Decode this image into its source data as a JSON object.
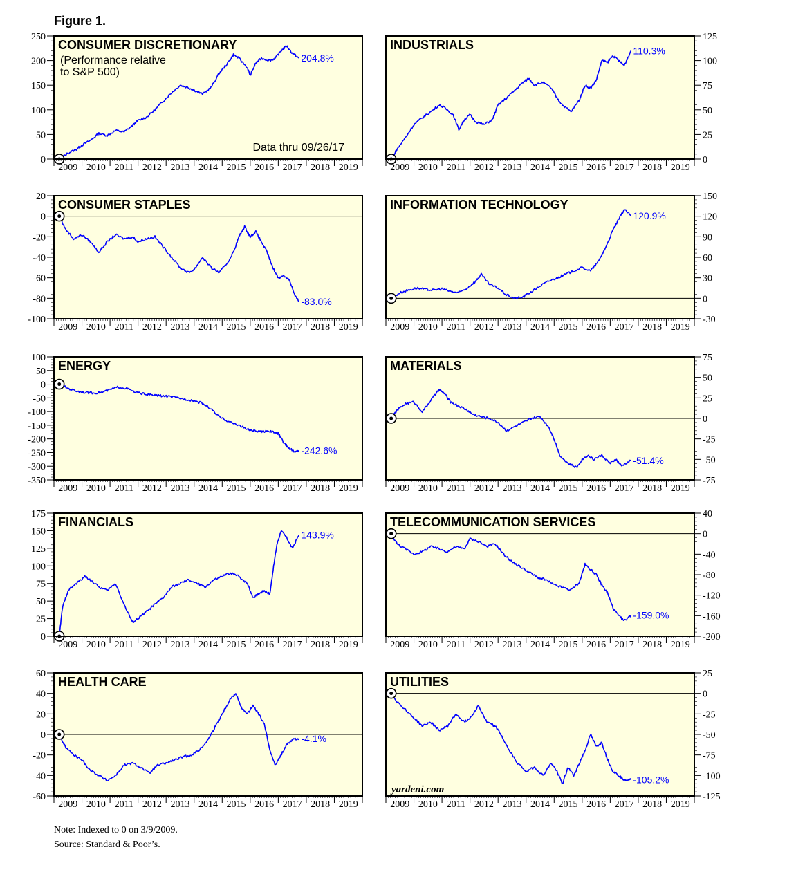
{
  "figure_title": "Figure 1.",
  "notes": {
    "line1": "Note: Indexed to 0 on 3/9/2009.",
    "line2": "Source: Standard & Poor’s."
  },
  "colors": {
    "panel_bg": "#FFFFE0",
    "series": "#0000FF",
    "end_label": "#0000FF"
  },
  "chart_data": [
    {
      "type": "line",
      "title": "CONSUMER DISCRETIONARY",
      "subtitle": [
        "(Performance relative",
        "to S&P 500)"
      ],
      "note": "Data thru 09/26/17",
      "x_ticks": [
        "2009",
        "2010",
        "2011",
        "2012",
        "2013",
        "2014",
        "2015",
        "2016",
        "2017",
        "2018",
        "2019"
      ],
      "ylim": [
        0,
        250
      ],
      "y_ticks": [
        "0",
        "50",
        "100",
        "150",
        "200",
        "250"
      ],
      "y_axis": "left",
      "baseline": 0,
      "end_label": "204.8%",
      "x": [
        2009.19,
        2009.5,
        2009.8,
        2010.0,
        2010.3,
        2010.6,
        2010.9,
        2011.2,
        2011.5,
        2011.8,
        2012.0,
        2012.3,
        2012.6,
        2012.9,
        2013.2,
        2013.5,
        2013.8,
        2014.0,
        2014.3,
        2014.6,
        2014.9,
        2015.2,
        2015.4,
        2015.6,
        2015.9,
        2016.0,
        2016.2,
        2016.4,
        2016.7,
        2016.9,
        2017.1,
        2017.3,
        2017.5,
        2017.74
      ],
      "y": [
        0,
        12,
        20,
        28,
        38,
        52,
        48,
        58,
        55,
        68,
        78,
        85,
        100,
        118,
        135,
        150,
        145,
        140,
        132,
        145,
        175,
        195,
        212,
        205,
        185,
        170,
        195,
        205,
        200,
        205,
        220,
        230,
        215,
        205
      ]
    },
    {
      "type": "line",
      "title": "INDUSTRIALS",
      "x_ticks": [
        "2009",
        "2010",
        "2011",
        "2012",
        "2013",
        "2014",
        "2015",
        "2016",
        "2017",
        "2018",
        "2019"
      ],
      "ylim": [
        0,
        125
      ],
      "y_ticks": [
        "0",
        "25",
        "50",
        "75",
        "100",
        "125"
      ],
      "y_axis": "right",
      "baseline": 0,
      "end_label": "110.3%",
      "x": [
        2009.19,
        2009.4,
        2009.7,
        2010.0,
        2010.3,
        2010.6,
        2010.9,
        2011.1,
        2011.4,
        2011.6,
        2011.8,
        2012.0,
        2012.2,
        2012.5,
        2012.8,
        2013.0,
        2013.3,
        2013.6,
        2013.9,
        2014.1,
        2014.3,
        2014.6,
        2014.9,
        2015.1,
        2015.3,
        2015.6,
        2015.9,
        2016.1,
        2016.3,
        2016.5,
        2016.7,
        2016.9,
        2017.1,
        2017.3,
        2017.5,
        2017.74
      ],
      "y": [
        0,
        10,
        22,
        35,
        42,
        48,
        55,
        52,
        45,
        30,
        40,
        45,
        38,
        35,
        40,
        55,
        62,
        70,
        78,
        82,
        75,
        78,
        72,
        62,
        55,
        48,
        60,
        75,
        72,
        80,
        100,
        98,
        105,
        100,
        95,
        110
      ]
    },
    {
      "type": "line",
      "title": "CONSUMER STAPLES",
      "x_ticks": [
        "2009",
        "2010",
        "2011",
        "2012",
        "2013",
        "2014",
        "2015",
        "2016",
        "2017",
        "2018",
        "2019"
      ],
      "ylim": [
        -100,
        20
      ],
      "y_ticks": [
        "-100",
        "-80",
        "-60",
        "-40",
        "-20",
        "0",
        "20"
      ],
      "y_axis": "left",
      "baseline": 0,
      "end_label": "-83.0%",
      "x": [
        2009.19,
        2009.4,
        2009.7,
        2010.0,
        2010.3,
        2010.6,
        2010.9,
        2011.2,
        2011.5,
        2011.8,
        2012.0,
        2012.3,
        2012.6,
        2012.9,
        2013.2,
        2013.5,
        2013.8,
        2014.0,
        2014.3,
        2014.6,
        2014.9,
        2015.2,
        2015.4,
        2015.6,
        2015.8,
        2016.0,
        2016.2,
        2016.4,
        2016.6,
        2016.8,
        2017.0,
        2017.2,
        2017.4,
        2017.6,
        2017.74
      ],
      "y": [
        0,
        -12,
        -22,
        -18,
        -25,
        -35,
        -25,
        -18,
        -22,
        -20,
        -25,
        -22,
        -20,
        -30,
        -40,
        -50,
        -55,
        -52,
        -40,
        -50,
        -55,
        -45,
        -35,
        -20,
        -10,
        -20,
        -15,
        -25,
        -35,
        -50,
        -60,
        -58,
        -62,
        -78,
        -83
      ]
    },
    {
      "type": "line",
      "title": "INFORMATION TECHNOLOGY",
      "x_ticks": [
        "2009",
        "2010",
        "2011",
        "2012",
        "2013",
        "2014",
        "2015",
        "2016",
        "2017",
        "2018",
        "2019"
      ],
      "ylim": [
        -30,
        150
      ],
      "y_ticks": [
        "-30",
        "0",
        "30",
        "60",
        "90",
        "120",
        "150"
      ],
      "y_axis": "right",
      "baseline": 0,
      "end_label": "120.9%",
      "x": [
        2009.19,
        2009.5,
        2009.8,
        2010.1,
        2010.4,
        2010.7,
        2011.0,
        2011.3,
        2011.6,
        2011.9,
        2012.2,
        2012.4,
        2012.7,
        2013.0,
        2013.3,
        2013.6,
        2013.9,
        2014.2,
        2014.5,
        2014.8,
        2015.1,
        2015.4,
        2015.7,
        2016.0,
        2016.3,
        2016.6,
        2016.9,
        2017.1,
        2017.3,
        2017.5,
        2017.74
      ],
      "y": [
        0,
        8,
        12,
        15,
        13,
        12,
        14,
        10,
        8,
        15,
        25,
        35,
        20,
        15,
        5,
        0,
        2,
        10,
        18,
        25,
        30,
        35,
        40,
        45,
        40,
        55,
        80,
        100,
        115,
        130,
        120.9
      ]
    },
    {
      "type": "line",
      "title": "ENERGY",
      "x_ticks": [
        "2009",
        "2010",
        "2011",
        "2012",
        "2013",
        "2014",
        "2015",
        "2016",
        "2017",
        "2018",
        "2019"
      ],
      "ylim": [
        -350,
        100
      ],
      "y_ticks": [
        "-350",
        "-300",
        "-250",
        "-200",
        "-150",
        "-100",
        "-50",
        "0",
        "50",
        "100"
      ],
      "y_axis": "left",
      "baseline": 0,
      "end_label": "-242.6%",
      "x": [
        2009.19,
        2009.5,
        2009.8,
        2010.1,
        2010.4,
        2010.7,
        2011.0,
        2011.3,
        2011.6,
        2011.9,
        2012.2,
        2012.5,
        2012.8,
        2013.1,
        2013.4,
        2013.7,
        2014.0,
        2014.3,
        2014.6,
        2014.9,
        2015.1,
        2015.3,
        2015.6,
        2015.9,
        2016.1,
        2016.4,
        2016.6,
        2016.8,
        2017.0,
        2017.2,
        2017.4,
        2017.6,
        2017.74
      ],
      "y": [
        0,
        -15,
        -25,
        -30,
        -32,
        -30,
        -20,
        -10,
        -15,
        -30,
        -35,
        -40,
        -42,
        -45,
        -50,
        -55,
        -60,
        -70,
        -90,
        -120,
        -130,
        -140,
        -150,
        -165,
        -170,
        -175,
        -170,
        -175,
        -180,
        -215,
        -235,
        -248,
        -242.6
      ]
    },
    {
      "type": "line",
      "title": "MATERIALS",
      "x_ticks": [
        "2009",
        "2010",
        "2011",
        "2012",
        "2013",
        "2014",
        "2015",
        "2016",
        "2017",
        "2018",
        "2019"
      ],
      "ylim": [
        -75,
        75
      ],
      "y_ticks": [
        "-75",
        "-50",
        "-25",
        "0",
        "25",
        "50",
        "75"
      ],
      "y_axis": "right",
      "baseline": 0,
      "end_label": "-51.4%",
      "x": [
        2009.19,
        2009.4,
        2009.7,
        2010.0,
        2010.3,
        2010.6,
        2010.9,
        2011.1,
        2011.3,
        2011.6,
        2011.9,
        2012.1,
        2012.4,
        2012.7,
        2013.0,
        2013.3,
        2013.6,
        2013.9,
        2014.2,
        2014.5,
        2014.8,
        2015.0,
        2015.2,
        2015.5,
        2015.8,
        2016.0,
        2016.2,
        2016.4,
        2016.7,
        2017.0,
        2017.2,
        2017.4,
        2017.74
      ],
      "y": [
        0,
        10,
        18,
        20,
        8,
        22,
        35,
        30,
        20,
        15,
        10,
        5,
        2,
        0,
        -5,
        -15,
        -10,
        -5,
        0,
        2,
        -10,
        -25,
        -45,
        -55,
        -60,
        -50,
        -45,
        -50,
        -45,
        -55,
        -50,
        -58,
        -51.4
      ]
    },
    {
      "type": "line",
      "title": "FINANCIALS",
      "x_ticks": [
        "2009",
        "2010",
        "2011",
        "2012",
        "2013",
        "2014",
        "2015",
        "2016",
        "2017",
        "2018",
        "2019"
      ],
      "ylim": [
        0,
        175
      ],
      "y_ticks": [
        "0",
        "25",
        "50",
        "75",
        "100",
        "125",
        "150",
        "175"
      ],
      "y_axis": "left",
      "baseline": 0,
      "end_label": "143.9%",
      "x": [
        2009.19,
        2009.3,
        2009.5,
        2009.8,
        2010.1,
        2010.3,
        2010.6,
        2010.9,
        2011.2,
        2011.5,
        2011.8,
        2012.0,
        2012.3,
        2012.6,
        2012.9,
        2013.2,
        2013.5,
        2013.8,
        2014.1,
        2014.4,
        2014.7,
        2015.0,
        2015.3,
        2015.6,
        2015.9,
        2016.1,
        2016.3,
        2016.5,
        2016.7,
        2016.8,
        2016.95,
        2017.1,
        2017.3,
        2017.5,
        2017.74
      ],
      "y": [
        0,
        40,
        65,
        75,
        85,
        80,
        70,
        65,
        75,
        45,
        20,
        25,
        35,
        45,
        55,
        70,
        75,
        80,
        75,
        70,
        80,
        85,
        90,
        85,
        75,
        55,
        60,
        65,
        60,
        90,
        130,
        150,
        140,
        125,
        143.9
      ]
    },
    {
      "type": "line",
      "title": "TELECOMMUNICATION SERVICES",
      "x_ticks": [
        "2009",
        "2010",
        "2011",
        "2012",
        "2013",
        "2014",
        "2015",
        "2016",
        "2017",
        "2018",
        "2019"
      ],
      "ylim": [
        -200,
        40
      ],
      "y_ticks": [
        "-200",
        "-160",
        "-120",
        "-80",
        "-40",
        "0",
        "40"
      ],
      "y_axis": "right",
      "baseline": 0,
      "end_label": "-159.0%",
      "x": [
        2009.19,
        2009.4,
        2009.7,
        2010.0,
        2010.3,
        2010.6,
        2010.9,
        2011.2,
        2011.5,
        2011.8,
        2012.0,
        2012.3,
        2012.6,
        2012.9,
        2013.2,
        2013.5,
        2013.8,
        2014.1,
        2014.4,
        2014.7,
        2015.0,
        2015.3,
        2015.6,
        2015.9,
        2016.1,
        2016.3,
        2016.5,
        2016.7,
        2016.9,
        2017.1,
        2017.3,
        2017.5,
        2017.74
      ],
      "y": [
        0,
        -20,
        -30,
        -40,
        -35,
        -25,
        -30,
        -35,
        -25,
        -30,
        -10,
        -15,
        -25,
        -20,
        -40,
        -55,
        -65,
        -75,
        -85,
        -90,
        -100,
        -105,
        -110,
        -95,
        -60,
        -70,
        -80,
        -100,
        -115,
        -145,
        -160,
        -170,
        -159
      ]
    },
    {
      "type": "line",
      "title": "HEALTH CARE",
      "x_ticks": [
        "2009",
        "2010",
        "2011",
        "2012",
        "2013",
        "2014",
        "2015",
        "2016",
        "2017",
        "2018",
        "2019"
      ],
      "ylim": [
        -60,
        60
      ],
      "y_ticks": [
        "-60",
        "-40",
        "-20",
        "0",
        "20",
        "40",
        "60"
      ],
      "y_axis": "left",
      "baseline": 0,
      "end_label": "-4.1%",
      "x": [
        2009.19,
        2009.4,
        2009.7,
        2010.0,
        2010.3,
        2010.6,
        2010.9,
        2011.2,
        2011.5,
        2011.8,
        2012.1,
        2012.4,
        2012.7,
        2013.0,
        2013.3,
        2013.6,
        2013.9,
        2014.2,
        2014.5,
        2014.7,
        2014.9,
        2015.1,
        2015.3,
        2015.5,
        2015.7,
        2015.9,
        2016.1,
        2016.3,
        2016.5,
        2016.7,
        2016.9,
        2017.1,
        2017.3,
        2017.5,
        2017.74
      ],
      "y": [
        0,
        -12,
        -20,
        -25,
        -35,
        -40,
        -45,
        -40,
        -30,
        -28,
        -32,
        -38,
        -30,
        -28,
        -25,
        -22,
        -20,
        -15,
        -5,
        5,
        15,
        25,
        35,
        40,
        25,
        20,
        28,
        20,
        10,
        -15,
        -30,
        -20,
        -10,
        -5,
        -4.1
      ]
    },
    {
      "type": "line",
      "title": "UTILITIES",
      "x_ticks": [
        "2009",
        "2010",
        "2011",
        "2012",
        "2013",
        "2014",
        "2015",
        "2016",
        "2017",
        "2018",
        "2019"
      ],
      "ylim": [
        -125,
        25
      ],
      "y_ticks": [
        "-125",
        "-100",
        "-75",
        "-50",
        "-25",
        "0",
        "25"
      ],
      "y_axis": "right",
      "baseline": 0,
      "end_label": "-105.2%",
      "x": [
        2009.19,
        2009.4,
        2009.7,
        2010.0,
        2010.3,
        2010.6,
        2010.9,
        2011.2,
        2011.5,
        2011.8,
        2012.0,
        2012.3,
        2012.6,
        2012.9,
        2013.1,
        2013.4,
        2013.7,
        2014.0,
        2014.3,
        2014.6,
        2014.9,
        2015.1,
        2015.3,
        2015.5,
        2015.7,
        2015.9,
        2016.1,
        2016.3,
        2016.5,
        2016.7,
        2016.9,
        2017.1,
        2017.3,
        2017.5,
        2017.74
      ],
      "y": [
        0,
        -10,
        -20,
        -30,
        -40,
        -35,
        -45,
        -40,
        -25,
        -35,
        -30,
        -15,
        -35,
        -40,
        -50,
        -70,
        -85,
        -95,
        -90,
        -100,
        -85,
        -95,
        -110,
        -90,
        -100,
        -85,
        -70,
        -50,
        -65,
        -60,
        -80,
        -95,
        -100,
        -105,
        -105.2
      ],
      "watermark": "yardeni.com"
    }
  ]
}
